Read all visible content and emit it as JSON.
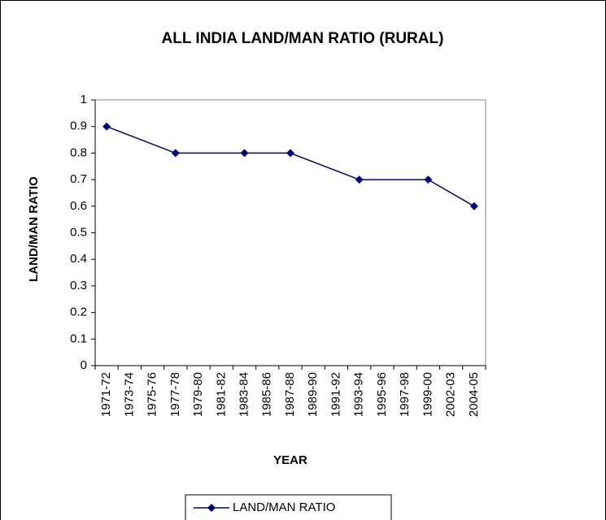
{
  "chart_data": {
    "type": "line",
    "title": "ALL INDIA LAND/MAN RATIO  (RURAL)",
    "x_label": "YEAR",
    "y_label": "LAND/MAN RATIO",
    "categories": [
      "1971-72",
      "1973-74",
      "1975-76",
      "1977-78",
      "1979-80",
      "1981-82",
      "1983-84",
      "1985-86",
      "1987-88",
      "1989-90",
      "1991-92",
      "1993-94",
      "1995-96",
      "1997-98",
      "1999-00",
      "2002-03",
      "2004-05"
    ],
    "series": [
      {
        "name": "LAND/MAN RATIO",
        "color": "#000080",
        "values": [
          0.9,
          null,
          null,
          0.8,
          null,
          null,
          0.8,
          null,
          0.8,
          null,
          null,
          0.7,
          null,
          null,
          0.7,
          null,
          0.6
        ]
      }
    ],
    "connect_gaps": true,
    "ylim": [
      0,
      1
    ],
    "yticks": [
      0,
      0.1,
      0.2,
      0.3,
      0.4,
      0.5,
      0.6,
      0.7,
      0.8,
      0.9,
      1
    ],
    "grid": false,
    "legend": "bottom"
  }
}
